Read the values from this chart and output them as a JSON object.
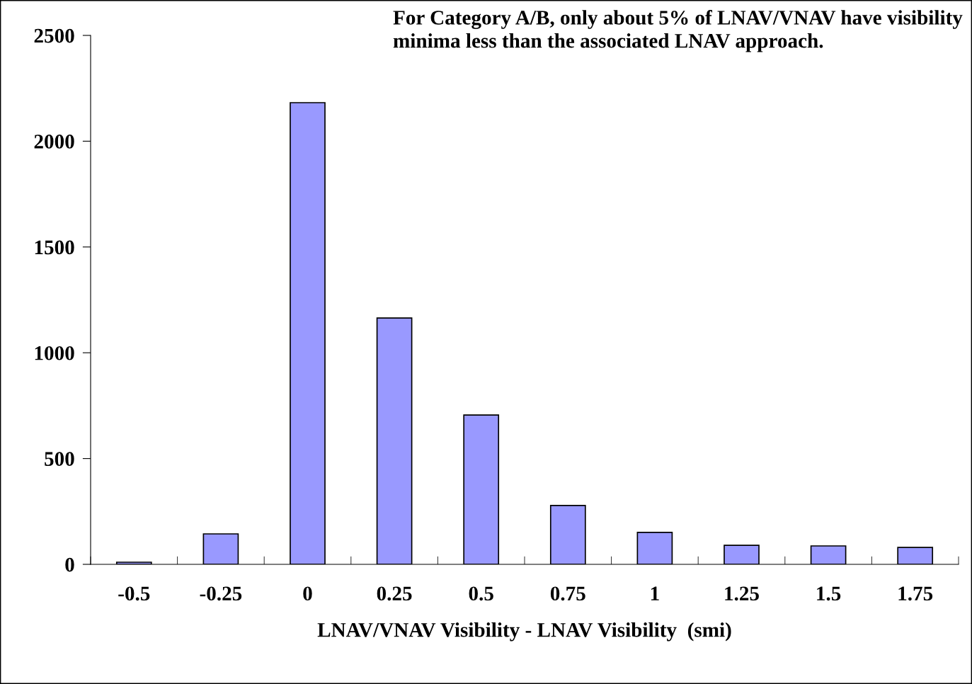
{
  "chart_data": {
    "type": "bar",
    "xlabel": "LNAV/VNAV Visibility - LNAV Visibility  (smi)",
    "annotations": [
      "For Category A/B, only about 5% of LNAV/VNAV have visibility minima less than the associated LNAV approach."
    ],
    "categories": [
      "-0.5",
      "-0.25",
      "0",
      "0.25",
      "0.5",
      "0.75",
      "1",
      "1.25",
      "1.5",
      "1.75"
    ],
    "values": [
      10,
      144,
      2182,
      1164,
      706,
      278,
      151,
      90,
      87,
      80
    ],
    "color": "#9999ff",
    "ylim": [
      0,
      2500
    ],
    "yticks": [
      0,
      500,
      1000,
      1500,
      2000,
      2500
    ],
    "grid": false,
    "legend": false
  }
}
